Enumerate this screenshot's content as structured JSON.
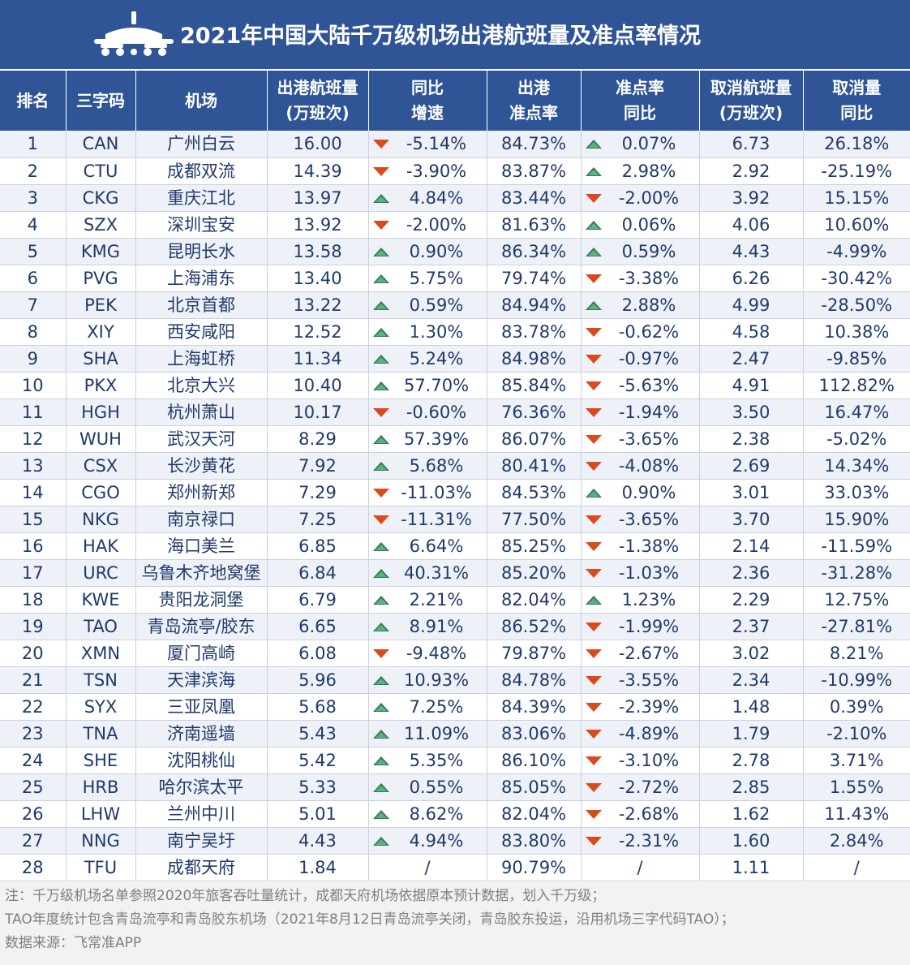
{
  "title": "2021年中国大陆千万级机场出港航班量及准点率情况",
  "colors": {
    "header_bg": "#2f5597",
    "up_arrow": "#2e7d52",
    "down_arrow": "#d94a1e"
  },
  "headers": [
    [
      "排名"
    ],
    [
      "三字码"
    ],
    [
      "机场"
    ],
    [
      "出港航班量",
      "(万班次)"
    ],
    [
      "同比",
      "增速"
    ],
    [
      "出港",
      "准点率"
    ],
    [
      "准点率",
      "同比"
    ],
    [
      "取消航班量",
      "(万班次)"
    ],
    [
      "取消量",
      "同比"
    ]
  ],
  "rows": [
    {
      "rank": "1",
      "code": "CAN",
      "airport": "广州白云",
      "flights": "16.00",
      "growth_dir": "down",
      "growth": "-5.14%",
      "ontime": "84.73%",
      "ontime_dir": "up",
      "ontime_yoy": "0.07%",
      "cancel": "6.73",
      "cancel_yoy": "26.18%"
    },
    {
      "rank": "2",
      "code": "CTU",
      "airport": "成都双流",
      "flights": "14.39",
      "growth_dir": "down",
      "growth": "-3.90%",
      "ontime": "83.87%",
      "ontime_dir": "up",
      "ontime_yoy": "2.98%",
      "cancel": "2.92",
      "cancel_yoy": "-25.19%"
    },
    {
      "rank": "3",
      "code": "CKG",
      "airport": "重庆江北",
      "flights": "13.97",
      "growth_dir": "up",
      "growth": "4.84%",
      "ontime": "83.44%",
      "ontime_dir": "down",
      "ontime_yoy": "-2.00%",
      "cancel": "3.92",
      "cancel_yoy": "15.15%"
    },
    {
      "rank": "4",
      "code": "SZX",
      "airport": "深圳宝安",
      "flights": "13.92",
      "growth_dir": "down",
      "growth": "-2.00%",
      "ontime": "81.63%",
      "ontime_dir": "up",
      "ontime_yoy": "0.06%",
      "cancel": "4.06",
      "cancel_yoy": "10.60%"
    },
    {
      "rank": "5",
      "code": "KMG",
      "airport": "昆明长水",
      "flights": "13.58",
      "growth_dir": "up",
      "growth": "0.90%",
      "ontime": "86.34%",
      "ontime_dir": "up",
      "ontime_yoy": "0.59%",
      "cancel": "4.43",
      "cancel_yoy": "-4.99%"
    },
    {
      "rank": "6",
      "code": "PVG",
      "airport": "上海浦东",
      "flights": "13.40",
      "growth_dir": "up",
      "growth": "5.75%",
      "ontime": "79.74%",
      "ontime_dir": "down",
      "ontime_yoy": "-3.38%",
      "cancel": "6.26",
      "cancel_yoy": "-30.42%"
    },
    {
      "rank": "7",
      "code": "PEK",
      "airport": "北京首都",
      "flights": "13.22",
      "growth_dir": "up",
      "growth": "0.59%",
      "ontime": "84.94%",
      "ontime_dir": "up",
      "ontime_yoy": "2.88%",
      "cancel": "4.99",
      "cancel_yoy": "-28.50%"
    },
    {
      "rank": "8",
      "code": "XIY",
      "airport": "西安咸阳",
      "flights": "12.52",
      "growth_dir": "up",
      "growth": "1.30%",
      "ontime": "83.78%",
      "ontime_dir": "down",
      "ontime_yoy": "-0.62%",
      "cancel": "4.58",
      "cancel_yoy": "10.38%"
    },
    {
      "rank": "9",
      "code": "SHA",
      "airport": "上海虹桥",
      "flights": "11.34",
      "growth_dir": "up",
      "growth": "5.24%",
      "ontime": "84.98%",
      "ontime_dir": "down",
      "ontime_yoy": "-0.97%",
      "cancel": "2.47",
      "cancel_yoy": "-9.85%"
    },
    {
      "rank": "10",
      "code": "PKX",
      "airport": "北京大兴",
      "flights": "10.40",
      "growth_dir": "up",
      "growth": "57.70%",
      "ontime": "85.84%",
      "ontime_dir": "down",
      "ontime_yoy": "-5.63%",
      "cancel": "4.91",
      "cancel_yoy": "112.82%"
    },
    {
      "rank": "11",
      "code": "HGH",
      "airport": "杭州萧山",
      "flights": "10.17",
      "growth_dir": "down",
      "growth": "-0.60%",
      "ontime": "76.36%",
      "ontime_dir": "down",
      "ontime_yoy": "-1.94%",
      "cancel": "3.50",
      "cancel_yoy": "16.47%"
    },
    {
      "rank": "12",
      "code": "WUH",
      "airport": "武汉天河",
      "flights": "8.29",
      "growth_dir": "up",
      "growth": "57.39%",
      "ontime": "86.07%",
      "ontime_dir": "down",
      "ontime_yoy": "-3.65%",
      "cancel": "2.38",
      "cancel_yoy": "-5.02%"
    },
    {
      "rank": "13",
      "code": "CSX",
      "airport": "长沙黄花",
      "flights": "7.92",
      "growth_dir": "up",
      "growth": "5.68%",
      "ontime": "80.41%",
      "ontime_dir": "down",
      "ontime_yoy": "-4.08%",
      "cancel": "2.69",
      "cancel_yoy": "14.34%"
    },
    {
      "rank": "14",
      "code": "CGO",
      "airport": "郑州新郑",
      "flights": "7.29",
      "growth_dir": "down",
      "growth": "-11.03%",
      "ontime": "84.53%",
      "ontime_dir": "up",
      "ontime_yoy": "0.90%",
      "cancel": "3.01",
      "cancel_yoy": "33.03%"
    },
    {
      "rank": "15",
      "code": "NKG",
      "airport": "南京禄口",
      "flights": "7.25",
      "growth_dir": "down",
      "growth": "-11.31%",
      "ontime": "77.50%",
      "ontime_dir": "down",
      "ontime_yoy": "-3.65%",
      "cancel": "3.70",
      "cancel_yoy": "15.90%"
    },
    {
      "rank": "16",
      "code": "HAK",
      "airport": "海口美兰",
      "flights": "6.85",
      "growth_dir": "up",
      "growth": "6.64%",
      "ontime": "85.25%",
      "ontime_dir": "down",
      "ontime_yoy": "-1.38%",
      "cancel": "2.14",
      "cancel_yoy": "-11.59%"
    },
    {
      "rank": "17",
      "code": "URC",
      "airport": "乌鲁木齐地窝堡",
      "flights": "6.84",
      "growth_dir": "up",
      "growth": "40.31%",
      "ontime": "85.20%",
      "ontime_dir": "down",
      "ontime_yoy": "-1.03%",
      "cancel": "2.36",
      "cancel_yoy": "-31.28%"
    },
    {
      "rank": "18",
      "code": "KWE",
      "airport": "贵阳龙洞堡",
      "flights": "6.79",
      "growth_dir": "up",
      "growth": "2.21%",
      "ontime": "82.04%",
      "ontime_dir": "up",
      "ontime_yoy": "1.23%",
      "cancel": "2.29",
      "cancel_yoy": "12.75%"
    },
    {
      "rank": "19",
      "code": "TAO",
      "airport": "青岛流亭/胶东",
      "flights": "6.65",
      "growth_dir": "up",
      "growth": "8.91%",
      "ontime": "86.52%",
      "ontime_dir": "down",
      "ontime_yoy": "-1.99%",
      "cancel": "2.37",
      "cancel_yoy": "-27.81%"
    },
    {
      "rank": "20",
      "code": "XMN",
      "airport": "厦门高崎",
      "flights": "6.08",
      "growth_dir": "down",
      "growth": "-9.48%",
      "ontime": "79.87%",
      "ontime_dir": "down",
      "ontime_yoy": "-2.67%",
      "cancel": "3.02",
      "cancel_yoy": "8.21%"
    },
    {
      "rank": "21",
      "code": "TSN",
      "airport": "天津滨海",
      "flights": "5.96",
      "growth_dir": "up",
      "growth": "10.93%",
      "ontime": "84.78%",
      "ontime_dir": "down",
      "ontime_yoy": "-3.55%",
      "cancel": "2.34",
      "cancel_yoy": "-10.99%"
    },
    {
      "rank": "22",
      "code": "SYX",
      "airport": "三亚凤凰",
      "flights": "5.68",
      "growth_dir": "up",
      "growth": "7.25%",
      "ontime": "84.39%",
      "ontime_dir": "down",
      "ontime_yoy": "-2.39%",
      "cancel": "1.48",
      "cancel_yoy": "0.39%"
    },
    {
      "rank": "23",
      "code": "TNA",
      "airport": "济南遥墙",
      "flights": "5.43",
      "growth_dir": "up",
      "growth": "11.09%",
      "ontime": "83.06%",
      "ontime_dir": "down",
      "ontime_yoy": "-4.89%",
      "cancel": "1.79",
      "cancel_yoy": "-2.10%"
    },
    {
      "rank": "24",
      "code": "SHE",
      "airport": "沈阳桃仙",
      "flights": "5.42",
      "growth_dir": "up",
      "growth": "5.35%",
      "ontime": "86.10%",
      "ontime_dir": "down",
      "ontime_yoy": "-3.10%",
      "cancel": "2.78",
      "cancel_yoy": "3.71%"
    },
    {
      "rank": "25",
      "code": "HRB",
      "airport": "哈尔滨太平",
      "flights": "5.33",
      "growth_dir": "up",
      "growth": "0.55%",
      "ontime": "85.05%",
      "ontime_dir": "down",
      "ontime_yoy": "-2.72%",
      "cancel": "2.85",
      "cancel_yoy": "1.55%"
    },
    {
      "rank": "26",
      "code": "LHW",
      "airport": "兰州中川",
      "flights": "5.01",
      "growth_dir": "up",
      "growth": "8.62%",
      "ontime": "82.04%",
      "ontime_dir": "down",
      "ontime_yoy": "-2.68%",
      "cancel": "1.62",
      "cancel_yoy": "11.43%"
    },
    {
      "rank": "27",
      "code": "NNG",
      "airport": "南宁吴圩",
      "flights": "4.43",
      "growth_dir": "up",
      "growth": "4.94%",
      "ontime": "83.80%",
      "ontime_dir": "down",
      "ontime_yoy": "-2.31%",
      "cancel": "1.60",
      "cancel_yoy": "2.84%"
    },
    {
      "rank": "28",
      "code": "TFU",
      "airport": "成都天府",
      "flights": "1.84",
      "growth_dir": "none",
      "growth": "/",
      "ontime": "90.79%",
      "ontime_dir": "none",
      "ontime_yoy": "/",
      "cancel": "1.11",
      "cancel_yoy": "/"
    }
  ],
  "notes": [
    "注：千万级机场名单参照2020年旅客吞吐量统计，成都天府机场依据原本预计数据，划入千万级；",
    "TAO年度统计包含青岛流亭和青岛胶东机场（2021年8月12日青岛流亭关闭，青岛胶东投运，沿用机场三字代码TAO）；",
    "数据来源：飞常准APP"
  ]
}
